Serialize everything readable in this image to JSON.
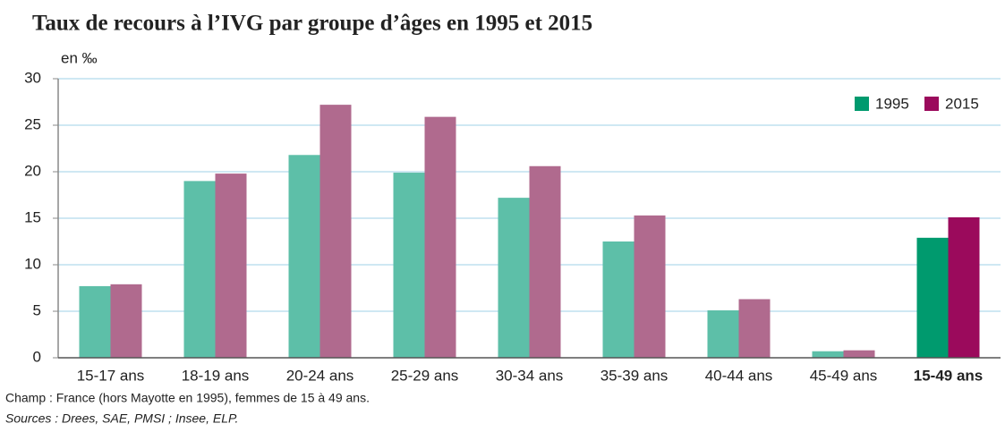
{
  "chart_data": {
    "type": "bar",
    "title": "Taux de recours à l’IVG par groupe d’âges en 1995 et 2015",
    "y_label": "en ‰",
    "categories": [
      "15-17 ans",
      "18-19 ans",
      "20-24 ans",
      "25-29 ans",
      "30-34 ans",
      "35-39 ans",
      "40-44 ans",
      "45-49 ans",
      "15-49 ans"
    ],
    "series": [
      {
        "name": "1995",
        "color": "#009a6e",
        "colors": [
          "#5dbfa8",
          "#5dbfa8",
          "#5dbfa8",
          "#5dbfa8",
          "#5dbfa8",
          "#5dbfa8",
          "#5dbfa8",
          "#5dbfa8",
          "#009a6e"
        ],
        "values": [
          7.7,
          19.0,
          21.8,
          19.9,
          17.2,
          12.5,
          5.1,
          0.7,
          12.9
        ]
      },
      {
        "name": "2015",
        "color": "#9b0a5c",
        "colors": [
          "#b06a8e",
          "#b06a8e",
          "#b06a8e",
          "#b06a8e",
          "#b06a8e",
          "#b06a8e",
          "#b06a8e",
          "#b06a8e",
          "#9b0a5c"
        ],
        "values": [
          7.9,
          19.8,
          27.2,
          25.9,
          20.6,
          15.3,
          6.3,
          0.8,
          15.1
        ]
      }
    ],
    "ylim": [
      0,
      30
    ],
    "yticks": [
      0,
      5,
      10,
      15,
      20,
      25,
      30
    ],
    "grid": true,
    "legend": "top-right",
    "notes": [
      "Champ : France (hors Mayotte en 1995), femmes de 15 à 49 ans.",
      "Sources : Drees, SAE, PMSI ; Insee, ELP."
    ]
  }
}
